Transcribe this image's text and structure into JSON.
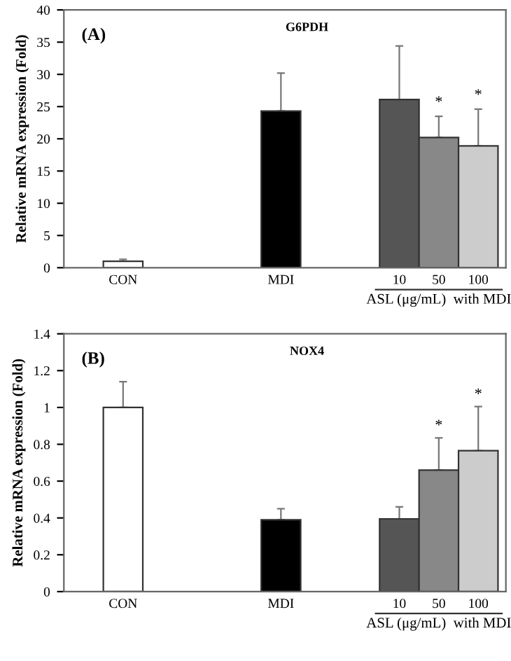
{
  "chart_data": [
    {
      "type": "bar",
      "title": "G6PDH",
      "ylabel": "Relative mRNA expression (Fold)",
      "categories": [
        "CON",
        null,
        null,
        null,
        "MDI",
        null,
        null,
        "10",
        "50",
        "100"
      ],
      "values": [
        1.0,
        null,
        null,
        null,
        24.3,
        null,
        null,
        26.1,
        20.2,
        18.9
      ],
      "colors": [
        "#ffffff",
        null,
        null,
        null,
        "#000000",
        null,
        null,
        "#555555",
        "#888888",
        "#cccccc"
      ],
      "errors": [
        [
          1.0,
          1.3
        ],
        null,
        null,
        null,
        [
          24.3,
          30.2
        ],
        null,
        null,
        [
          26.1,
          34.4
        ],
        [
          20.2,
          23.5
        ],
        [
          18.9,
          24.6
        ]
      ],
      "ylim": [
        0,
        40
      ],
      "yticks": [
        0,
        5,
        10,
        15,
        20,
        25,
        30,
        35,
        40
      ],
      "grid": false,
      "annotations": [
        "(A)",
        "ASL (μg/mL)  with MDI",
        {
          "text": "*",
          "x": "50",
          "y": 24.5
        },
        {
          "text": "*",
          "x": "100",
          "y": 25.6
        }
      ]
    },
    {
      "type": "bar",
      "title": "NOX4",
      "ylabel": "Relative mRNA expression (Fold)",
      "categories": [
        "CON",
        null,
        null,
        null,
        "MDI",
        null,
        null,
        "10",
        "50",
        "100"
      ],
      "values": [
        1.0,
        null,
        null,
        null,
        0.39,
        null,
        null,
        0.395,
        0.66,
        0.765
      ],
      "colors": [
        "#ffffff",
        null,
        null,
        null,
        "#000000",
        null,
        null,
        "#555555",
        "#888888",
        "#cccccc"
      ],
      "errors": [
        [
          1.0,
          1.14
        ],
        null,
        null,
        null,
        [
          0.39,
          0.45
        ],
        null,
        null,
        [
          0.395,
          0.46
        ],
        [
          0.66,
          0.835
        ],
        [
          0.765,
          1.005
        ]
      ],
      "ylim": [
        0,
        1.4
      ],
      "yticks": [
        0,
        0.2,
        0.4,
        0.6,
        0.8,
        1,
        1.2,
        1.4
      ],
      "grid": false,
      "annotations": [
        "(B)",
        "ASL (μg/mL)  with MDI",
        {
          "text": "*",
          "x": "50",
          "y": 0.86
        },
        {
          "text": "*",
          "x": "100",
          "y": 1.03
        }
      ]
    }
  ]
}
